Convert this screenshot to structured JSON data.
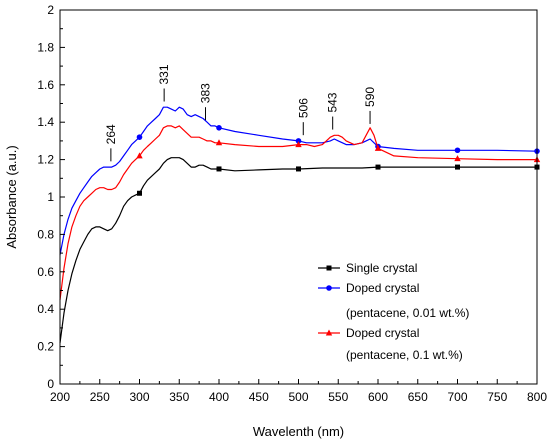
{
  "chart_data": {
    "type": "line",
    "xlabel": "Wavelenth (nm)",
    "ylabel": "Absorbance (a.u.)",
    "xlim": [
      200,
      800
    ],
    "ylim": [
      0,
      2
    ],
    "xticks": [
      "200",
      "250",
      "300",
      "350",
      "400",
      "450",
      "500",
      "550",
      "600",
      "650",
      "700",
      "750",
      "800"
    ],
    "yticks": [
      "0",
      "0.2",
      "0.4",
      "0.6",
      "0.8",
      "1",
      "1.2",
      "1.4",
      "1.6",
      "1.8",
      "2"
    ],
    "xtick_values": [
      200,
      250,
      300,
      350,
      400,
      450,
      500,
      550,
      600,
      650,
      700,
      750,
      800
    ],
    "ytick_values": [
      0,
      0.2,
      0.4,
      0.6,
      0.8,
      1,
      1.2,
      1.4,
      1.6,
      1.8,
      2
    ],
    "grid": false,
    "legend_position": "bottom-right",
    "legend": [
      "Single crystal",
      "Doped crystal",
      "(pentacene, 0.01 wt.%)",
      "Doped crystal",
      "(pentacene, 0.1 wt.%)"
    ],
    "annotations": [
      {
        "text": "264",
        "x": 264,
        "y": 1.18
      },
      {
        "text": "331",
        "x": 331,
        "y": 1.5
      },
      {
        "text": "383",
        "x": 383,
        "y": 1.4
      },
      {
        "text": "506",
        "x": 506,
        "y": 1.32
      },
      {
        "text": "543",
        "x": 543,
        "y": 1.35
      },
      {
        "text": "590",
        "x": 590,
        "y": 1.38
      }
    ],
    "series": [
      {
        "color": "#000000",
        "marker": "square",
        "marker_x": [
          300,
          400,
          500,
          600,
          700,
          800
        ],
        "x": [
          200,
          205,
          210,
          215,
          220,
          225,
          230,
          235,
          240,
          245,
          250,
          255,
          260,
          265,
          270,
          275,
          280,
          285,
          290,
          295,
          300,
          305,
          310,
          315,
          320,
          325,
          330,
          335,
          340,
          345,
          350,
          355,
          360,
          365,
          370,
          375,
          380,
          385,
          390,
          395,
          400,
          420,
          450,
          480,
          500,
          530,
          560,
          580,
          600,
          650,
          700,
          750,
          800
        ],
        "values": [
          0.22,
          0.38,
          0.5,
          0.59,
          0.66,
          0.72,
          0.76,
          0.8,
          0.83,
          0.84,
          0.84,
          0.83,
          0.82,
          0.83,
          0.86,
          0.9,
          0.95,
          0.98,
          1.0,
          1.01,
          1.02,
          1.06,
          1.09,
          1.11,
          1.13,
          1.15,
          1.18,
          1.2,
          1.21,
          1.21,
          1.21,
          1.2,
          1.18,
          1.16,
          1.16,
          1.17,
          1.17,
          1.16,
          1.15,
          1.15,
          1.15,
          1.14,
          1.145,
          1.15,
          1.15,
          1.155,
          1.155,
          1.155,
          1.16,
          1.16,
          1.16,
          1.16,
          1.16
        ]
      },
      {
        "color": "#0000ff",
        "marker": "circle",
        "marker_x": [
          300,
          400,
          500,
          600,
          700,
          800
        ],
        "x": [
          200,
          205,
          210,
          215,
          220,
          225,
          230,
          235,
          240,
          245,
          250,
          255,
          260,
          265,
          270,
          275,
          280,
          285,
          290,
          295,
          300,
          305,
          310,
          315,
          320,
          325,
          330,
          335,
          340,
          345,
          350,
          355,
          360,
          365,
          370,
          375,
          380,
          385,
          390,
          395,
          400,
          420,
          450,
          480,
          500,
          510,
          520,
          530,
          540,
          545,
          550,
          560,
          570,
          580,
          585,
          590,
          595,
          600,
          620,
          650,
          700,
          750,
          800
        ],
        "values": [
          0.69,
          0.8,
          0.88,
          0.94,
          0.98,
          1.02,
          1.05,
          1.08,
          1.11,
          1.13,
          1.15,
          1.16,
          1.16,
          1.16,
          1.17,
          1.19,
          1.22,
          1.25,
          1.28,
          1.3,
          1.32,
          1.35,
          1.38,
          1.4,
          1.42,
          1.44,
          1.48,
          1.48,
          1.47,
          1.46,
          1.48,
          1.47,
          1.44,
          1.43,
          1.44,
          1.43,
          1.42,
          1.4,
          1.38,
          1.38,
          1.37,
          1.35,
          1.33,
          1.31,
          1.3,
          1.29,
          1.29,
          1.29,
          1.3,
          1.31,
          1.3,
          1.28,
          1.28,
          1.29,
          1.3,
          1.31,
          1.29,
          1.27,
          1.26,
          1.25,
          1.25,
          1.25,
          1.245
        ]
      },
      {
        "color": "#ff0000",
        "marker": "triangle",
        "marker_x": [
          300,
          400,
          500,
          600,
          700,
          800
        ],
        "x": [
          200,
          205,
          210,
          215,
          220,
          225,
          230,
          235,
          240,
          245,
          250,
          255,
          260,
          265,
          270,
          275,
          280,
          285,
          290,
          295,
          300,
          305,
          310,
          315,
          320,
          325,
          330,
          335,
          340,
          345,
          350,
          355,
          360,
          365,
          370,
          375,
          380,
          385,
          390,
          395,
          400,
          420,
          450,
          480,
          500,
          510,
          520,
          530,
          535,
          540,
          545,
          550,
          555,
          560,
          570,
          580,
          585,
          590,
          595,
          600,
          620,
          650,
          700,
          750,
          800
        ],
        "values": [
          0.45,
          0.62,
          0.75,
          0.84,
          0.9,
          0.95,
          0.98,
          1.0,
          1.02,
          1.04,
          1.05,
          1.05,
          1.04,
          1.04,
          1.05,
          1.08,
          1.12,
          1.15,
          1.18,
          1.2,
          1.22,
          1.25,
          1.27,
          1.29,
          1.31,
          1.33,
          1.37,
          1.38,
          1.38,
          1.37,
          1.38,
          1.36,
          1.34,
          1.32,
          1.32,
          1.32,
          1.31,
          1.3,
          1.3,
          1.29,
          1.29,
          1.28,
          1.27,
          1.27,
          1.28,
          1.28,
          1.27,
          1.28,
          1.3,
          1.32,
          1.33,
          1.33,
          1.32,
          1.3,
          1.28,
          1.29,
          1.33,
          1.37,
          1.33,
          1.26,
          1.22,
          1.21,
          1.205,
          1.2,
          1.2
        ]
      }
    ]
  }
}
